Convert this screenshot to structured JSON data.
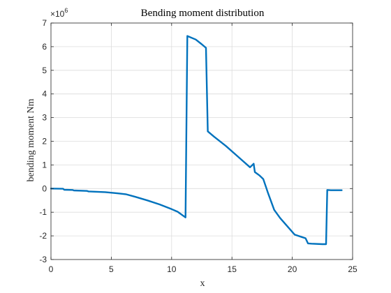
{
  "chart_data": {
    "type": "line",
    "title": "Bending moment distribution",
    "xlabel": "x",
    "ylabel": "bending moment Nm",
    "y_exponent_base": "×10",
    "y_exponent_power": "6",
    "xlim": [
      0,
      25
    ],
    "ylim": [
      -3,
      7
    ],
    "x_ticks": [
      0,
      5,
      10,
      15,
      20,
      25
    ],
    "y_ticks": [
      -3,
      -2,
      -1,
      0,
      1,
      2,
      3,
      4,
      5,
      6,
      7
    ],
    "grid": true,
    "line_color": "#0072bd",
    "series": [
      {
        "x": [
          0,
          1.0,
          1.1,
          1.8,
          1.9,
          3.0,
          3.1,
          4.5,
          5.5,
          6.2,
          7.0,
          8.0,
          9.0,
          10.0,
          10.5,
          11.15,
          11.3,
          12.0,
          12.5,
          12.85,
          13.0,
          13.5,
          14.5,
          15.5,
          16.5,
          16.8,
          16.9,
          17.3,
          17.6,
          18.0,
          18.5,
          19.0,
          20.2,
          20.8,
          21.1,
          21.3,
          21.6,
          22.5,
          22.8,
          22.9,
          23.2,
          24.1
        ],
        "y": [
          0,
          -0.01,
          -0.05,
          -0.06,
          -0.08,
          -0.1,
          -0.12,
          -0.15,
          -0.2,
          -0.24,
          -0.35,
          -0.5,
          -0.67,
          -0.87,
          -0.98,
          -1.22,
          6.45,
          6.3,
          6.1,
          5.95,
          2.42,
          2.2,
          1.8,
          1.35,
          0.9,
          1.05,
          0.7,
          0.55,
          0.4,
          -0.2,
          -0.9,
          -1.25,
          -1.95,
          -2.05,
          -2.1,
          -2.32,
          -2.33,
          -2.35,
          -2.35,
          -0.06,
          -0.07,
          -0.07
        ]
      }
    ]
  }
}
